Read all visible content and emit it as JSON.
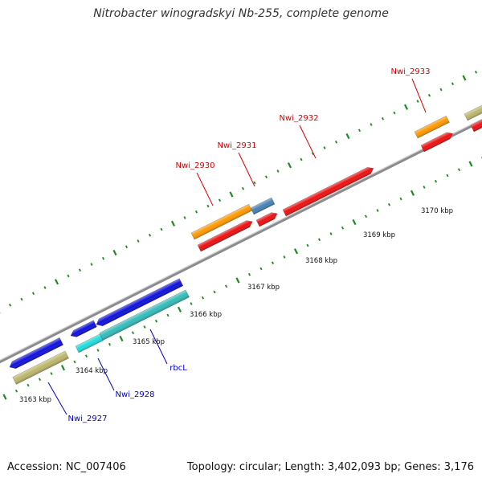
{
  "title": "Nitrobacter winogradskyi Nb-255, complete genome",
  "footer": {
    "accession": "Accession: NC_007406",
    "stats": "Topology: circular; Length: 3,402,093 bp; Genes: 3,176"
  },
  "colors": {
    "backbone": "#8c8c8c",
    "tick": "#1e8c1e",
    "red_gene": "#ee1111",
    "orange_gene": "#ff9900",
    "steelblue_gene": "#4682b4",
    "blue_gene": "#1111dd",
    "cyan_gene": "#22dddd",
    "teal_gene": "#33bbbb",
    "khaki_gene": "#bdb76b",
    "label_forward": "#dd0000",
    "label_reverse": "#0000cc"
  },
  "scale_labels": [
    "3163 kbp",
    "3164 kbp",
    "3165 kbp",
    "3166 kbp",
    "3167 kbp",
    "3168 kbp",
    "3169 kbp",
    "3170 kbp"
  ],
  "gene_labels": [
    {
      "text": "Nwi_2933",
      "strand": "forward"
    },
    {
      "text": "Nwi_2932",
      "strand": "forward"
    },
    {
      "text": "Nwi_2931",
      "strand": "forward"
    },
    {
      "text": "Nwi_2930",
      "strand": "forward"
    },
    {
      "text": "rbcL",
      "strand": "reverse"
    },
    {
      "text": "Nwi_2928",
      "strand": "reverse"
    },
    {
      "text": "Nwi_2927",
      "strand": "reverse"
    }
  ]
}
